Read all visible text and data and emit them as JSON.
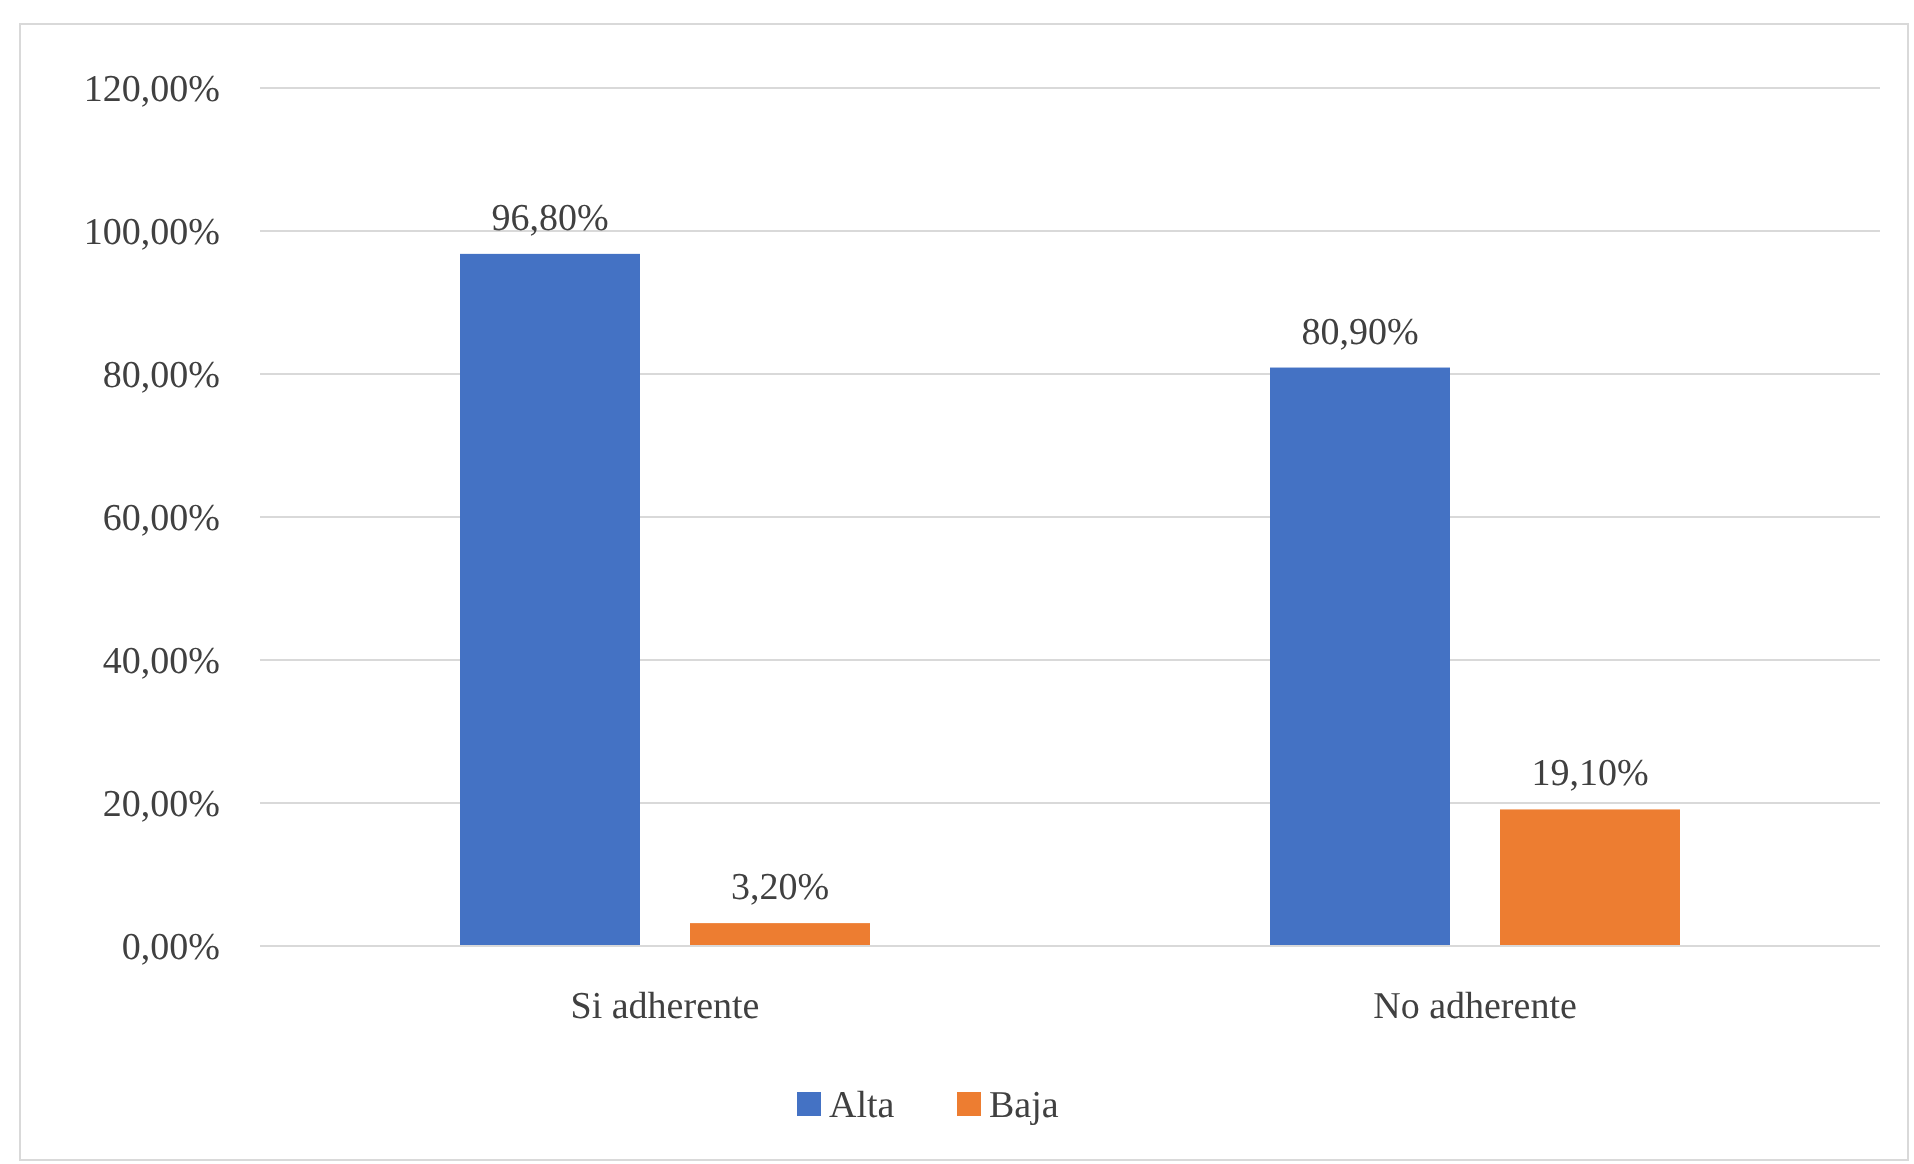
{
  "chart_data": {
    "type": "bar",
    "categories": [
      "Si adherente",
      "No adherente"
    ],
    "series": [
      {
        "name": "Alta",
        "color": "#4472c4",
        "values": [
          96.8,
          80.9
        ],
        "value_labels": [
          "96,80%",
          "80,90%"
        ]
      },
      {
        "name": "Baja",
        "color": "#ed7d31",
        "values": [
          3.2,
          19.1
        ],
        "value_labels": [
          "3,20%",
          "19,10%"
        ]
      }
    ],
    "ylim": [
      0,
      120
    ],
    "yticks": [
      {
        "value": 0,
        "label": "0,00%"
      },
      {
        "value": 20,
        "label": "20,00%"
      },
      {
        "value": 40,
        "label": "40,00%"
      },
      {
        "value": 60,
        "label": "60,00%"
      },
      {
        "value": 80,
        "label": "80,00%"
      },
      {
        "value": 100,
        "label": "100,00%"
      },
      {
        "value": 120,
        "label": "120,00%"
      }
    ],
    "grid": "y",
    "legend": "bottom"
  }
}
